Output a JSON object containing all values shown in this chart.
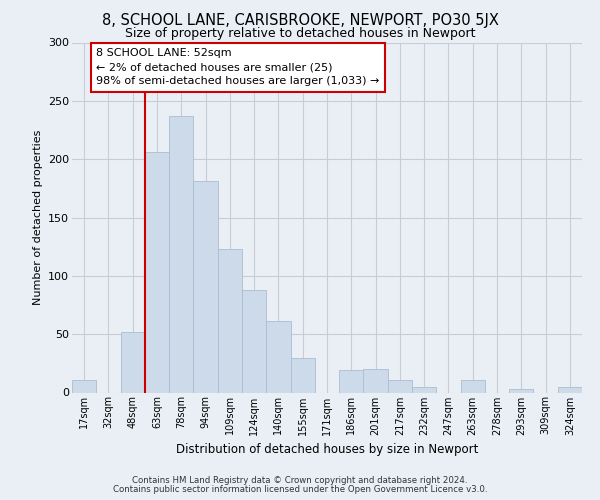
{
  "title": "8, SCHOOL LANE, CARISBROOKE, NEWPORT, PO30 5JX",
  "subtitle": "Size of property relative to detached houses in Newport",
  "xlabel": "Distribution of detached houses by size in Newport",
  "ylabel": "Number of detached properties",
  "bar_labels": [
    "17sqm",
    "32sqm",
    "48sqm",
    "63sqm",
    "78sqm",
    "94sqm",
    "109sqm",
    "124sqm",
    "140sqm",
    "155sqm",
    "171sqm",
    "186sqm",
    "201sqm",
    "217sqm",
    "232sqm",
    "247sqm",
    "263sqm",
    "278sqm",
    "293sqm",
    "309sqm",
    "324sqm"
  ],
  "bar_values": [
    11,
    0,
    52,
    206,
    237,
    181,
    123,
    88,
    61,
    30,
    0,
    19,
    20,
    11,
    5,
    0,
    11,
    0,
    3,
    0,
    5
  ],
  "bar_color": "#cddaea",
  "bar_edge_color": "#aabdd0",
  "vline_x": 2.5,
  "vline_color": "#cc0000",
  "annotation_text": "8 SCHOOL LANE: 52sqm\n← 2% of detached houses are smaller (25)\n98% of semi-detached houses are larger (1,033) →",
  "annotation_box_color": "#ffffff",
  "annotation_box_edge": "#cc0000",
  "ylim": [
    0,
    300
  ],
  "yticks": [
    0,
    50,
    100,
    150,
    200,
    250,
    300
  ],
  "footnote1": "Contains HM Land Registry data © Crown copyright and database right 2024.",
  "footnote2": "Contains public sector information licensed under the Open Government Licence v3.0.",
  "bg_color": "#eaeff5",
  "plot_bg_color": "#eaeff5",
  "grid_color": "#c8cdd5"
}
